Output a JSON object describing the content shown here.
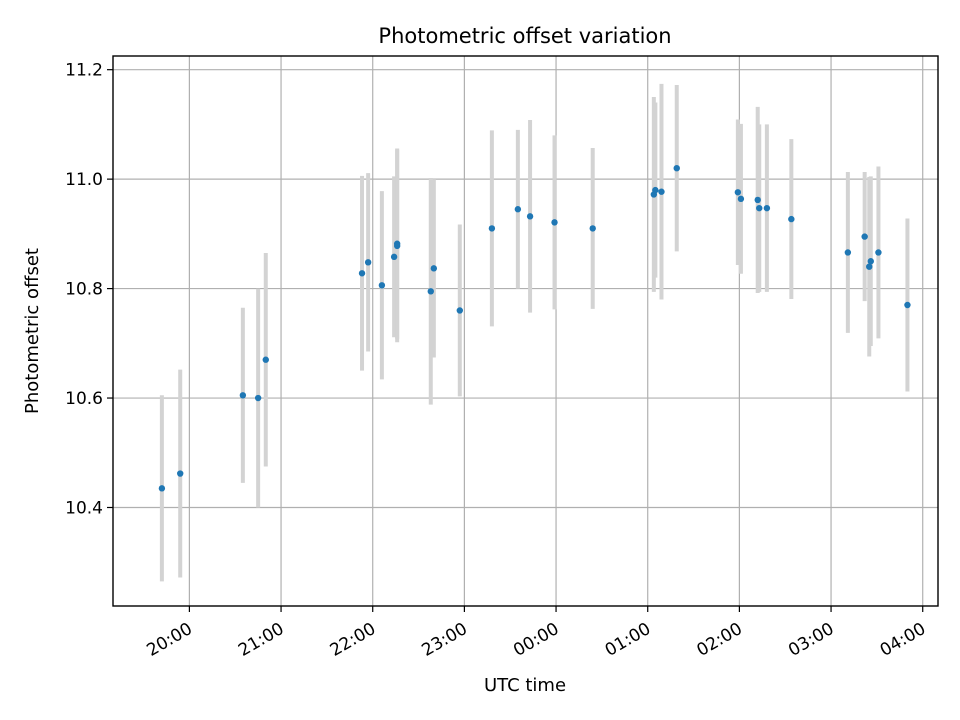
{
  "chart_data": {
    "type": "scatter",
    "title": "Photometric offset variation",
    "xlabel": "UTC time",
    "ylabel": "Photometric offset",
    "x_axis": "time",
    "xlim": [
      "19:10",
      "04:10"
    ],
    "ylim": [
      10.22,
      11.225
    ],
    "x_ticks": [
      "20:00",
      "21:00",
      "22:00",
      "23:00",
      "00:00",
      "01:00",
      "02:00",
      "03:00",
      "04:00"
    ],
    "y_ticks": [
      10.4,
      10.6,
      10.8,
      11.0,
      11.2
    ],
    "grid": true,
    "point_color": "#1f77b4",
    "errorbar_color": "#d3d3d3",
    "series": [
      {
        "points": [
          {
            "t": "19:42",
            "y": 10.435,
            "err": 0.17
          },
          {
            "t": "19:54",
            "y": 10.462,
            "err": 0.19
          },
          {
            "t": "20:35",
            "y": 10.605,
            "err": 0.16
          },
          {
            "t": "20:45",
            "y": 10.6,
            "err": 0.2
          },
          {
            "t": "20:50",
            "y": 10.67,
            "err": 0.195
          },
          {
            "t": "21:53",
            "y": 10.828,
            "err": 0.178
          },
          {
            "t": "21:57",
            "y": 10.848,
            "err": 0.163
          },
          {
            "t": "22:06",
            "y": 10.806,
            "err": 0.172
          },
          {
            "t": "22:14",
            "y": 10.858,
            "err": 0.147
          },
          {
            "t": "22:16",
            "y": 10.882,
            "err": 0.174
          },
          {
            "t": "22:16",
            "y": 10.878,
            "err": 0.176
          },
          {
            "t": "22:38",
            "y": 10.795,
            "err": 0.207
          },
          {
            "t": "22:40",
            "y": 10.837,
            "err": 0.163
          },
          {
            "t": "22:57",
            "y": 10.76,
            "err": 0.157
          },
          {
            "t": "23:18",
            "y": 10.91,
            "err": 0.179
          },
          {
            "t": "23:35",
            "y": 10.945,
            "err": 0.145
          },
          {
            "t": "23:43",
            "y": 10.932,
            "err": 0.176
          },
          {
            "t": "23:59",
            "y": 10.921,
            "err": 0.159
          },
          {
            "t": "00:24",
            "y": 10.91,
            "err": 0.147
          },
          {
            "t": "01:04",
            "y": 10.972,
            "err": 0.178
          },
          {
            "t": "01:05",
            "y": 10.98,
            "err": 0.16
          },
          {
            "t": "01:09",
            "y": 10.977,
            "err": 0.197
          },
          {
            "t": "01:19",
            "y": 11.02,
            "err": 0.152
          },
          {
            "t": "01:59",
            "y": 10.976,
            "err": 0.133
          },
          {
            "t": "02:01",
            "y": 10.964,
            "err": 0.137
          },
          {
            "t": "02:12",
            "y": 10.962,
            "err": 0.17
          },
          {
            "t": "02:13",
            "y": 10.947,
            "err": 0.153
          },
          {
            "t": "02:18",
            "y": 10.947,
            "err": 0.153
          },
          {
            "t": "02:34",
            "y": 10.927,
            "err": 0.146
          },
          {
            "t": "03:11",
            "y": 10.866,
            "err": 0.147
          },
          {
            "t": "03:22",
            "y": 10.895,
            "err": 0.118
          },
          {
            "t": "03:25",
            "y": 10.84,
            "err": 0.164
          },
          {
            "t": "03:26",
            "y": 10.85,
            "err": 0.155
          },
          {
            "t": "03:31",
            "y": 10.866,
            "err": 0.157
          },
          {
            "t": "03:50",
            "y": 10.77,
            "err": 0.158
          }
        ]
      }
    ]
  }
}
